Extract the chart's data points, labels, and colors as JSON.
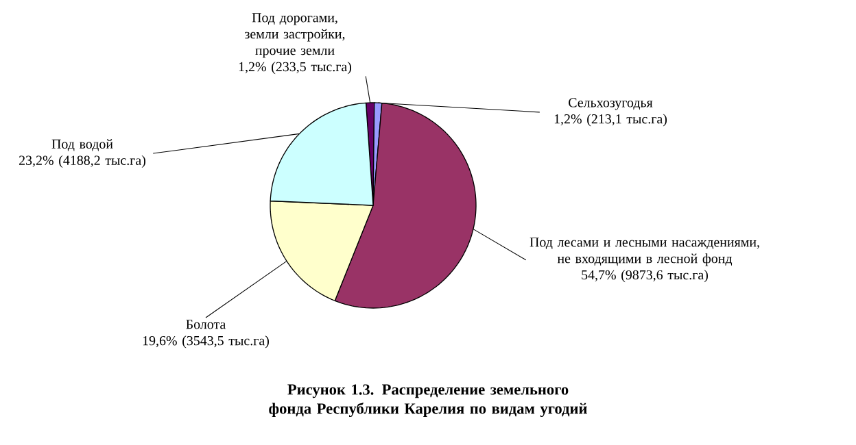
{
  "chart_data": {
    "type": "pie",
    "title": "**Рисунок 1.3.  Распределение земельного фонда  Республики Карелия по видам угодий**",
    "categories": [
      "Под дорогами, земли застройки, прочие земли",
      "Сельхозугодья",
      "Под лесами и лесными насаждениями, не входящими в лесной фонд",
      "Болота",
      "Под водой"
    ],
    "values": [
      233.5,
      213.1,
      9873.6,
      3543.5,
      4188.2
    ],
    "colors": [
      "#660066",
      "#9999ff",
      "#993366",
      "#ffffcc",
      "#ccffff"
    ],
    "value_labels": [
      "1,2% (233,5 тыс.га)",
      "1,2% (213,1 тыс.га)",
      "54,7% (9873,6 тыс.га)",
      "19,6% (3543,5 тыс.га)",
      "23,2% (4188,2 тыс.га)"
    ]
  }
}
